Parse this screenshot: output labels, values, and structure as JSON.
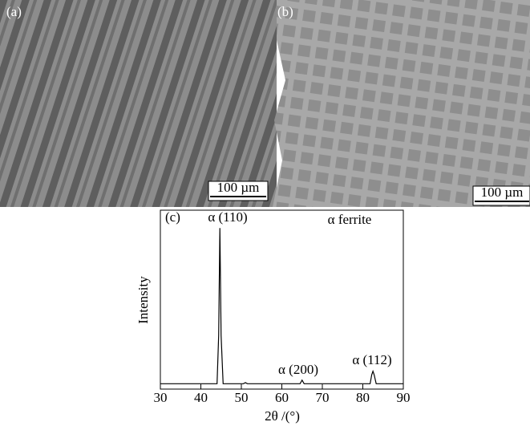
{
  "panels": [
    {
      "label": "(a)",
      "scale_bar": "100 µm"
    },
    {
      "label": "(b)",
      "scale_bar": "100 µm"
    }
  ],
  "chart_data": {
    "type": "line",
    "label": "(c)",
    "x_label": "2θ /(°)",
    "y_label": "Intensity",
    "xlim": [
      30,
      90
    ],
    "xticks": [
      30,
      40,
      50,
      60,
      70,
      80,
      90
    ],
    "ylim": [
      0,
      100
    ],
    "series": [
      {
        "color": "#000000",
        "x": [
          30,
          44,
          44.4,
          44.7,
          45.0,
          45.5,
          50.5,
          51,
          51.5,
          64.5,
          65,
          65.5,
          81.8,
          82.2,
          82.5,
          82.8,
          83.3,
          90
        ],
        "values": [
          3,
          3,
          30,
          90,
          30,
          3,
          3,
          3.6,
          3,
          3,
          5,
          3,
          3,
          8,
          10,
          8,
          3,
          3
        ]
      }
    ],
    "annotations": [
      "α (110)",
      "α ferrite",
      "α (200)",
      "α (112)"
    ]
  }
}
